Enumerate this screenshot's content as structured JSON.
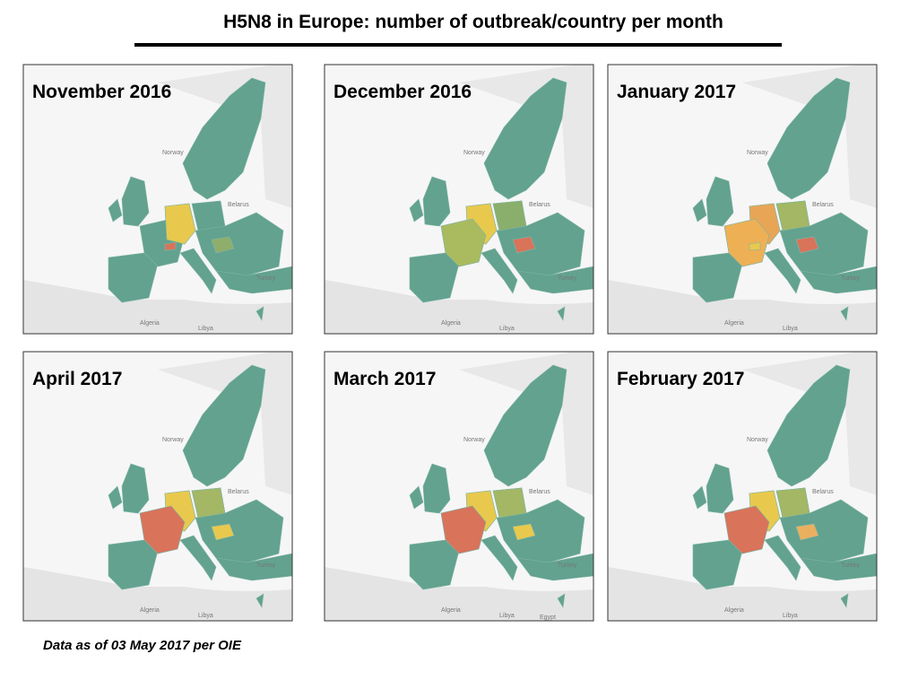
{
  "header": {
    "title": "H5N8 in Europe: number of outbreak/country per month"
  },
  "panels": [
    {
      "title": "November 2016",
      "labels": [
        "Norway",
        "Belarus",
        "Turkey",
        "Algeria",
        "Libya"
      ]
    },
    {
      "title": "December 2016",
      "labels": [
        "Norway",
        "Belarus",
        "Turkey",
        "Algeria",
        "Libya"
      ]
    },
    {
      "title": "January 2017",
      "labels": [
        "Norway",
        "Belarus",
        "Turkey",
        "Algeria",
        "Libya"
      ]
    },
    {
      "title": "April 2017",
      "labels": [
        "Norway",
        "Belarus",
        "Turkey",
        "Algeria",
        "Libya"
      ]
    },
    {
      "title": "March 2017",
      "labels": [
        "Norway",
        "Belarus",
        "Turkey",
        "Algeria",
        "Libya",
        "Egypt"
      ]
    },
    {
      "title": "February 2017",
      "labels": [
        "Norway",
        "Belarus",
        "Turkey",
        "Algeria",
        "Libya"
      ]
    }
  ],
  "footnote": "Data as of 03 May 2017 per OIE"
}
